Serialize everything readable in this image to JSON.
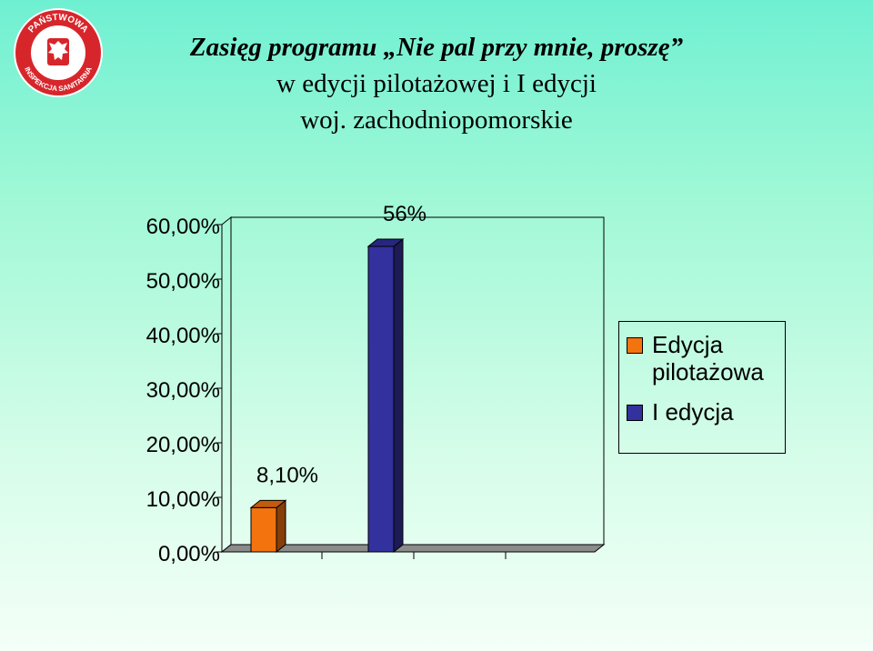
{
  "slide": {
    "background_top": "#6ff0d2",
    "background_bottom": "#f4fff8"
  },
  "logo": {
    "icon": "sanitary-inspection-eagle-emblem-icon",
    "text_top": "PAŃSTWOWA",
    "text_bottom": "INSPEKCJA SANITARNA",
    "ring_color": "#d7262b"
  },
  "title": {
    "line1": "Zasięg programu „Nie pal przy mnie, proszę”",
    "line2": "w edycji pilotażowej i I edycji",
    "line3": "woj. zachodniopomorskie"
  },
  "chart_data": {
    "type": "bar",
    "title": "",
    "xlabel": "",
    "ylabel": "",
    "ylim": [
      0,
      60
    ],
    "yticks": [
      "0,00%",
      "10,00%",
      "20,00%",
      "30,00%",
      "40,00%",
      "50,00%",
      "60,00%"
    ],
    "grid": false,
    "three_d": true,
    "legend_placement": "right",
    "series": [
      {
        "name": "Edycja pilotażowa",
        "color": "#f3730f",
        "value": 8.1,
        "label": "8,10%"
      },
      {
        "name": "I edycja",
        "color": "#32319d",
        "value": 56,
        "label": "56%"
      }
    ]
  },
  "legend": {
    "items": [
      {
        "label": "Edycja pilotażowa",
        "color": "#f3730f"
      },
      {
        "label": "I edycja",
        "color": "#32319d"
      }
    ]
  }
}
